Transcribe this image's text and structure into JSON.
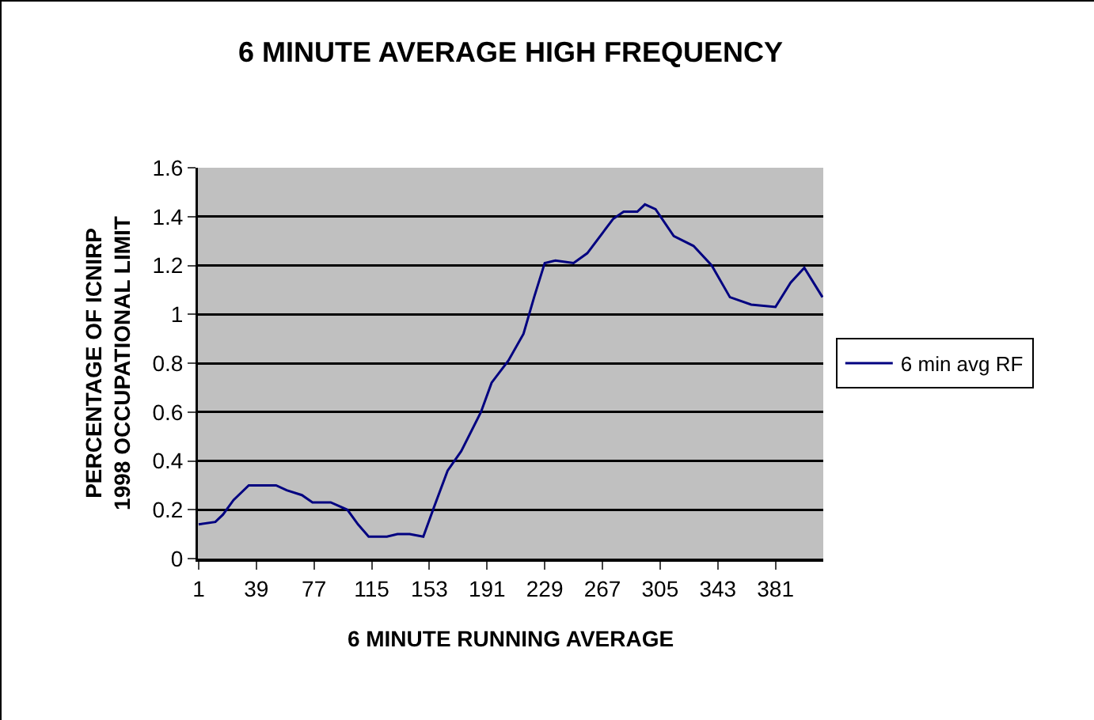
{
  "chart_data": {
    "type": "line",
    "title": "6 MINUTE AVERAGE HIGH FREQUENCY",
    "xlabel": "6 MINUTE RUNNING AVERAGE",
    "ylabel": "PERCENTAGE OF ICNIRP\n1998 OCCUPATIONAL LIMIT",
    "x": [
      1,
      12,
      17,
      24,
      34,
      52,
      59,
      69,
      76,
      88,
      99,
      106,
      113,
      125,
      132,
      140,
      149,
      156,
      165,
      174,
      187,
      194,
      205,
      215,
      222,
      229,
      236,
      248,
      257,
      274,
      281,
      290,
      295,
      302,
      314,
      327,
      339,
      351,
      365,
      381,
      391,
      400,
      412
    ],
    "series": [
      {
        "name": "6 min avg RF",
        "color": "#000080",
        "values": [
          0.14,
          0.15,
          0.18,
          0.24,
          0.3,
          0.3,
          0.28,
          0.26,
          0.23,
          0.23,
          0.2,
          0.14,
          0.09,
          0.09,
          0.1,
          0.1,
          0.09,
          0.21,
          0.36,
          0.44,
          0.6,
          0.72,
          0.81,
          0.92,
          1.07,
          1.21,
          1.22,
          1.21,
          1.25,
          1.39,
          1.42,
          1.42,
          1.45,
          1.43,
          1.32,
          1.28,
          1.2,
          1.07,
          1.04,
          1.03,
          1.13,
          1.19,
          1.07
        ]
      }
    ],
    "xlim": [
      0.5,
      412.5
    ],
    "xticks": [
      1,
      39,
      77,
      115,
      153,
      191,
      229,
      267,
      305,
      343,
      381
    ],
    "ylim": [
      0,
      1.6
    ],
    "yticks": [
      0,
      0.2,
      0.4,
      0.6,
      0.8,
      1,
      1.2,
      1.4,
      1.6
    ],
    "grid": "y",
    "legend": "right",
    "marker": "none",
    "line_style": "solid"
  }
}
